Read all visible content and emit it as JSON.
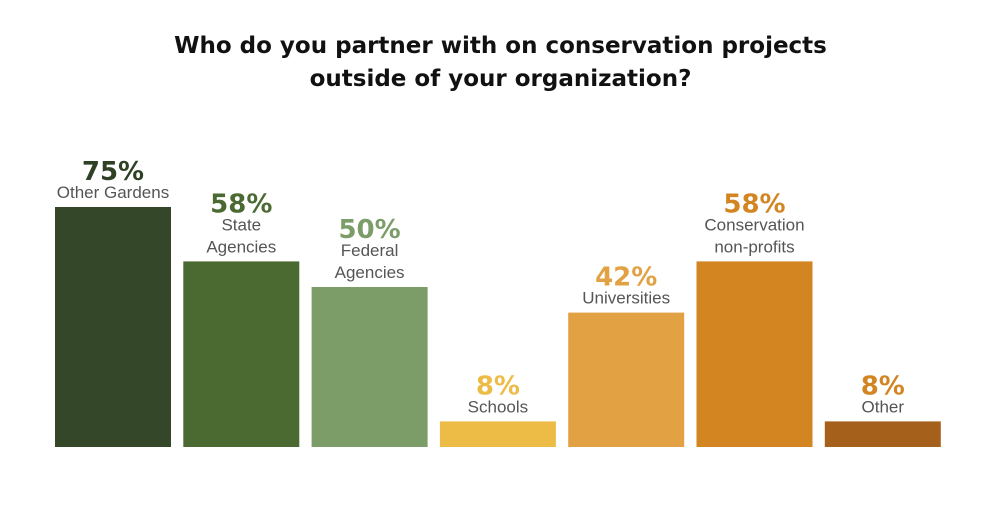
{
  "chart_data": {
    "type": "bar",
    "title": "Who do you partner with on conservation projects outside of your organization?",
    "title_lines": [
      "Who do you partner with on conservation projects",
      "outside of your organization?"
    ],
    "xlabel": "",
    "ylabel": "",
    "ylim": [
      0,
      100
    ],
    "grid": false,
    "categories": [
      "Other Gardens",
      "State Agencies",
      "Federal Agencies",
      "Schools",
      "Universities",
      "Conservation non-profits",
      "Other"
    ],
    "category_label_lines": [
      [
        "Other Gardens"
      ],
      [
        "State",
        "Agencies"
      ],
      [
        "Federal",
        "Agencies"
      ],
      [
        "Schools"
      ],
      [
        "Universities"
      ],
      [
        "Conservation",
        "non-profits"
      ],
      [
        "Other"
      ]
    ],
    "values": [
      75,
      58,
      50,
      8,
      42,
      58,
      8
    ],
    "value_labels": [
      "75%",
      "58%",
      "50%",
      "8%",
      "42%",
      "58%",
      "8%"
    ],
    "bar_colors": [
      "#344728",
      "#4a6a32",
      "#7c9c68",
      "#ecbc46",
      "#e2a143",
      "#d28521",
      "#a5611c"
    ],
    "label_colors": [
      "#2f4124",
      "#4a6a32",
      "#7c9c68",
      "#ecbc46",
      "#e2a143",
      "#d28521",
      "#d28521"
    ]
  }
}
